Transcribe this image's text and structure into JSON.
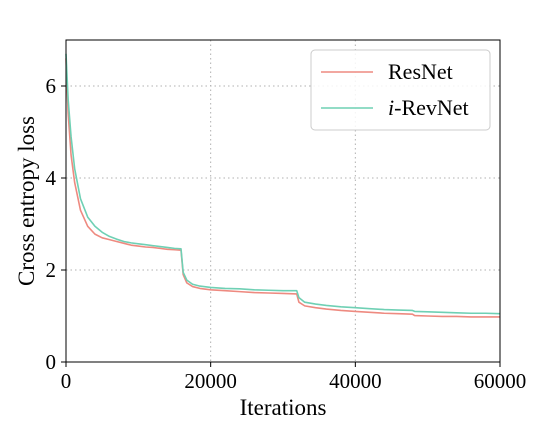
{
  "chart_data": {
    "type": "line",
    "title": "",
    "xlabel": "Iterations",
    "ylabel": "Cross entropy loss",
    "xlim": [
      0,
      60000
    ],
    "ylim": [
      0,
      7
    ],
    "xticks": [
      0,
      20000,
      40000,
      60000
    ],
    "yticks": [
      0,
      2,
      4,
      6
    ],
    "grid": true,
    "legend_position": "top-right",
    "series": [
      {
        "name": "ResNet",
        "name_parts": [
          "ResNet"
        ],
        "color": "#ee8a80",
        "points": [
          [
            0,
            6.6
          ],
          [
            300,
            5.4
          ],
          [
            700,
            4.5
          ],
          [
            1200,
            3.9
          ],
          [
            2000,
            3.3
          ],
          [
            3000,
            2.95
          ],
          [
            4000,
            2.78
          ],
          [
            5000,
            2.7
          ],
          [
            6000,
            2.66
          ],
          [
            7000,
            2.62
          ],
          [
            8000,
            2.58
          ],
          [
            9000,
            2.54
          ],
          [
            10000,
            2.52
          ],
          [
            11000,
            2.5
          ],
          [
            12000,
            2.49
          ],
          [
            13000,
            2.47
          ],
          [
            14000,
            2.45
          ],
          [
            15000,
            2.44
          ],
          [
            15900,
            2.43
          ],
          [
            16200,
            1.9
          ],
          [
            16700,
            1.72
          ],
          [
            17500,
            1.64
          ],
          [
            18500,
            1.6
          ],
          [
            20000,
            1.57
          ],
          [
            22000,
            1.55
          ],
          [
            24000,
            1.53
          ],
          [
            26000,
            1.51
          ],
          [
            28000,
            1.5
          ],
          [
            30000,
            1.49
          ],
          [
            31900,
            1.48
          ],
          [
            32200,
            1.3
          ],
          [
            33000,
            1.22
          ],
          [
            34500,
            1.18
          ],
          [
            36000,
            1.15
          ],
          [
            38000,
            1.12
          ],
          [
            40000,
            1.1
          ],
          [
            42000,
            1.08
          ],
          [
            44000,
            1.06
          ],
          [
            46000,
            1.05
          ],
          [
            47900,
            1.04
          ],
          [
            48200,
            1.01
          ],
          [
            50000,
            1.0
          ],
          [
            52000,
            0.99
          ],
          [
            54000,
            0.99
          ],
          [
            56000,
            0.98
          ],
          [
            58000,
            0.98
          ],
          [
            60000,
            0.98
          ]
        ]
      },
      {
        "name": "i-RevNet",
        "name_parts": [
          "i",
          "-RevNet"
        ],
        "color": "#6fd0b4",
        "points": [
          [
            0,
            6.7
          ],
          [
            300,
            5.7
          ],
          [
            700,
            4.9
          ],
          [
            1200,
            4.2
          ],
          [
            2000,
            3.55
          ],
          [
            3000,
            3.15
          ],
          [
            4000,
            2.95
          ],
          [
            5000,
            2.82
          ],
          [
            6000,
            2.73
          ],
          [
            7000,
            2.67
          ],
          [
            8000,
            2.62
          ],
          [
            9000,
            2.59
          ],
          [
            10000,
            2.57
          ],
          [
            11000,
            2.55
          ],
          [
            12000,
            2.53
          ],
          [
            13000,
            2.51
          ],
          [
            14000,
            2.49
          ],
          [
            15000,
            2.47
          ],
          [
            15900,
            2.46
          ],
          [
            16200,
            1.95
          ],
          [
            16700,
            1.78
          ],
          [
            17500,
            1.69
          ],
          [
            18500,
            1.65
          ],
          [
            20000,
            1.62
          ],
          [
            22000,
            1.6
          ],
          [
            24000,
            1.59
          ],
          [
            26000,
            1.57
          ],
          [
            28000,
            1.56
          ],
          [
            30000,
            1.55
          ],
          [
            31900,
            1.55
          ],
          [
            32200,
            1.4
          ],
          [
            33000,
            1.3
          ],
          [
            34500,
            1.26
          ],
          [
            36000,
            1.23
          ],
          [
            38000,
            1.2
          ],
          [
            40000,
            1.18
          ],
          [
            42000,
            1.16
          ],
          [
            44000,
            1.14
          ],
          [
            46000,
            1.13
          ],
          [
            47900,
            1.12
          ],
          [
            48200,
            1.1
          ],
          [
            50000,
            1.09
          ],
          [
            52000,
            1.08
          ],
          [
            54000,
            1.07
          ],
          [
            56000,
            1.06
          ],
          [
            58000,
            1.06
          ],
          [
            60000,
            1.05
          ]
        ]
      }
    ]
  }
}
